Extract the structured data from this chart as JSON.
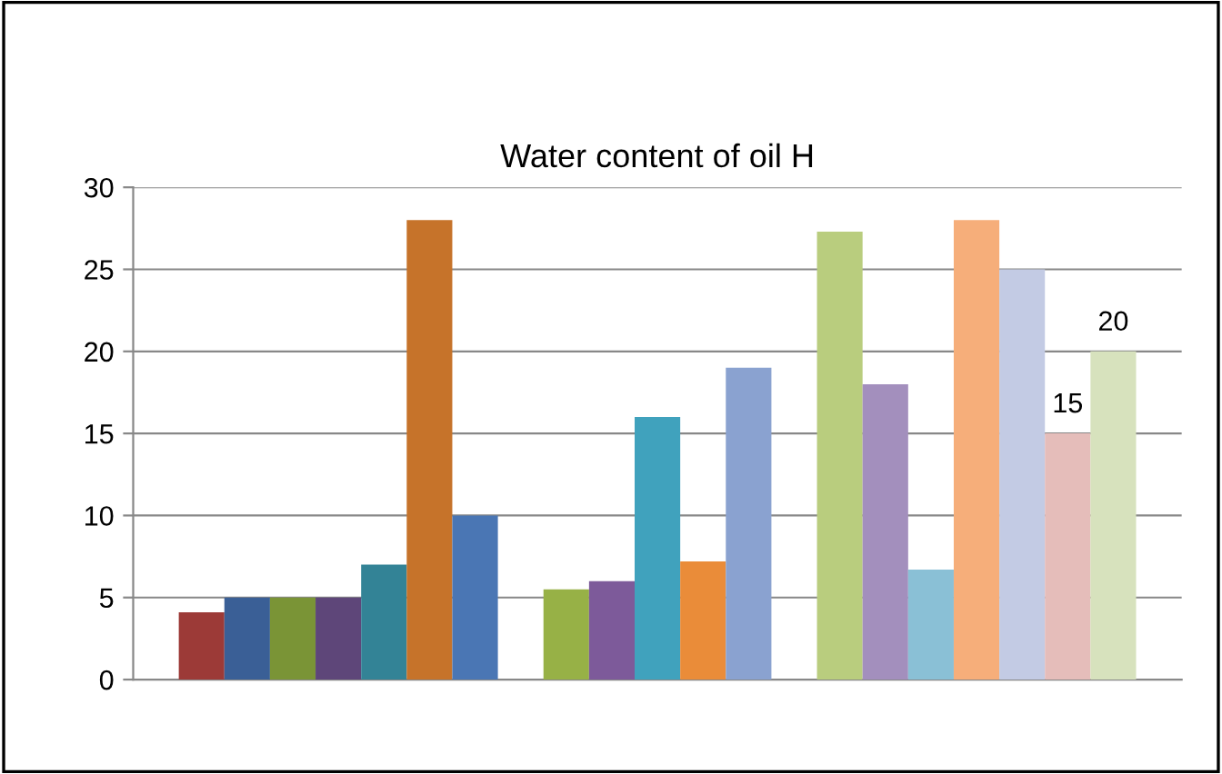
{
  "chart_data": {
    "type": "bar",
    "title": "Water content of oil H",
    "categories": [
      null,
      null,
      null,
      null,
      null,
      null,
      null,
      null,
      null,
      null,
      null,
      null,
      null,
      null,
      null,
      null,
      null,
      null,
      null,
      null,
      null,
      null,
      null
    ],
    "values": [
      null,
      4.1,
      5,
      5,
      5,
      7,
      28,
      10,
      null,
      5.5,
      6,
      16,
      7.2,
      19,
      null,
      27.3,
      18,
      6.7,
      28,
      25,
      15,
      20,
      null
    ],
    "colors": [
      null,
      "#9c3a37",
      "#3a5f96",
      "#7a9436",
      "#5e4679",
      "#338396",
      "#c6732a",
      "#4a76b4",
      null,
      "#97b146",
      "#7d5a9a",
      "#40a2bd",
      "#ea8c39",
      "#8aa2d0",
      null,
      "#b9cd7e",
      "#a38fbd",
      "#8ac0d6",
      "#f6ae7a",
      "#c3cbe4",
      "#e5bdba",
      "#d7e2bd",
      null
    ],
    "value_labels": [
      null,
      null,
      null,
      null,
      null,
      null,
      null,
      null,
      null,
      null,
      null,
      null,
      null,
      null,
      null,
      null,
      null,
      null,
      null,
      null,
      "15",
      "20",
      null
    ],
    "ylim": [
      0,
      30
    ],
    "yticks": [
      0,
      5,
      10,
      15,
      20,
      25,
      30
    ],
    "grid": "y"
  }
}
